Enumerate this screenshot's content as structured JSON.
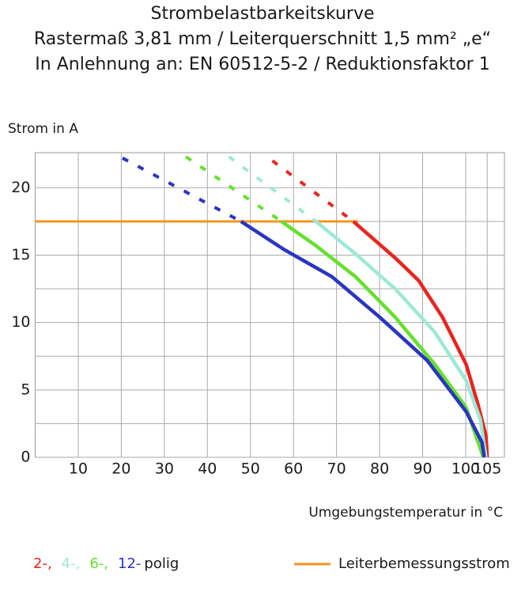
{
  "chart_data": {
    "type": "line",
    "title": [
      "Strombelastbarkeitskurve",
      "Rastermaß 3,81 mm / Leiterquerschnitt 1,5 mm² „e“",
      "In Anlehnung an: EN 60512-5-2 / Reduktionsfaktor 1"
    ],
    "y_label": "Strom in A",
    "x_label": "Umgebungstemperatur in °C",
    "xlim": [
      0,
      109
    ],
    "ylim": [
      0,
      22.6
    ],
    "xticks": [
      10,
      20,
      30,
      40,
      50,
      60,
      70,
      80,
      90,
      100,
      105
    ],
    "yticks": [
      0,
      5,
      10,
      15,
      20
    ],
    "grid": true,
    "series": [
      {
        "name": "2-,",
        "color": "#e8251f",
        "x": [
          73.9,
          83.6,
          89.1,
          94.6,
          100.1,
          102.8,
          104.7,
          105
        ],
        "values": [
          17.5,
          14.8,
          13.1,
          10.4,
          6.9,
          4.0,
          1.6,
          0
        ],
        "extrapolated": {
          "x": [
            55.1,
            73.9
          ],
          "values": [
            22.0,
            17.5
          ]
        }
      },
      {
        "name": "4-,",
        "color": "#9ee8d8",
        "x": [
          65.2,
          74.4,
          83.6,
          92.8,
          100.1,
          103.4,
          104.7
        ],
        "values": [
          17.5,
          15.1,
          12.5,
          9.3,
          5.7,
          2.8,
          0
        ],
        "extrapolated": {
          "x": [
            45,
            65.2
          ],
          "values": [
            22.3,
            17.5
          ]
        }
      },
      {
        "name": "6-,",
        "color": "#66e02e",
        "x": [
          57.2,
          65.2,
          74.4,
          83.6,
          92.8,
          100.1,
          104.1
        ],
        "values": [
          17.5,
          15.7,
          13.4,
          10.4,
          6.9,
          3.7,
          0
        ],
        "extrapolated": {
          "x": [
            35,
            57.2
          ],
          "values": [
            22.3,
            17.5
          ]
        }
      },
      {
        "name": "12-",
        "color": "#2a35c0",
        "x": [
          47.8,
          57.9,
          68.9,
          80,
          91,
          100.1,
          103.8,
          104.3
        ],
        "values": [
          17.5,
          15.4,
          13.4,
          10.4,
          7.2,
          3.4,
          1.1,
          0
        ],
        "extrapolated": {
          "x": [
            20.3,
            47.8
          ],
          "values": [
            22.2,
            17.5
          ]
        }
      }
    ],
    "series_suffix": "polig",
    "rated_current": {
      "name": "Leiterbemessungsstrom",
      "color": "#f7941d",
      "x": [
        0,
        75
      ],
      "values": [
        17.5,
        17.5
      ]
    }
  }
}
